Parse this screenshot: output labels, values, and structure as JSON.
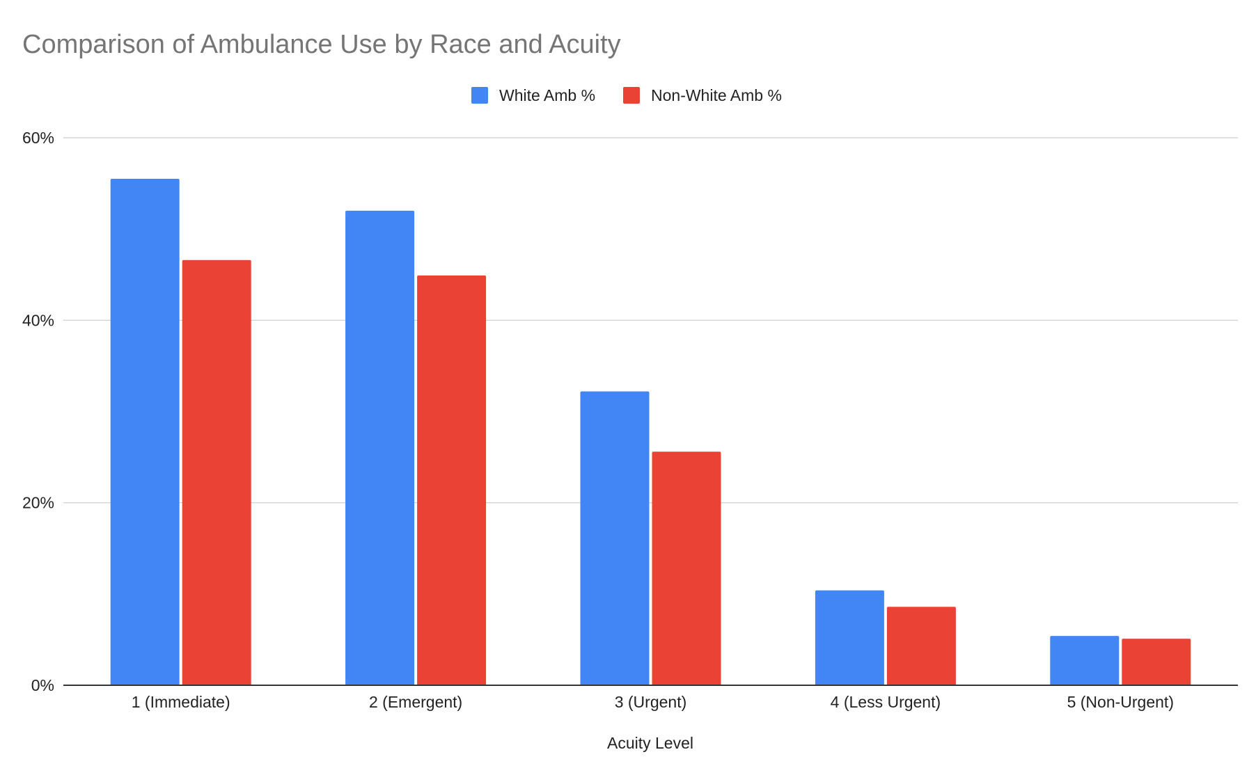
{
  "chart_data": {
    "type": "bar",
    "title": "Comparison of Ambulance Use by Race and Acuity",
    "xlabel": "Acuity Level",
    "ylabel": "",
    "categories": [
      "1 (Immediate)",
      "2 (Emergent)",
      "3 (Urgent)",
      "4 (Less Urgent)",
      "5 (Non-Urgent)"
    ],
    "series": [
      {
        "name": "White Amb %",
        "color": "#4285f4",
        "values": [
          55.5,
          52.0,
          32.2,
          10.4,
          5.4
        ]
      },
      {
        "name": "Non-White Amb %",
        "color": "#ea4335",
        "values": [
          46.6,
          44.9,
          25.6,
          8.6,
          5.1
        ]
      }
    ],
    "ylim": [
      0,
      60
    ],
    "yticks": [
      {
        "value": 0,
        "label": "0%"
      },
      {
        "value": 20,
        "label": "20%"
      },
      {
        "value": 40,
        "label": "40%"
      },
      {
        "value": 60,
        "label": "60%"
      }
    ],
    "legend": "top-center",
    "grid": true
  }
}
